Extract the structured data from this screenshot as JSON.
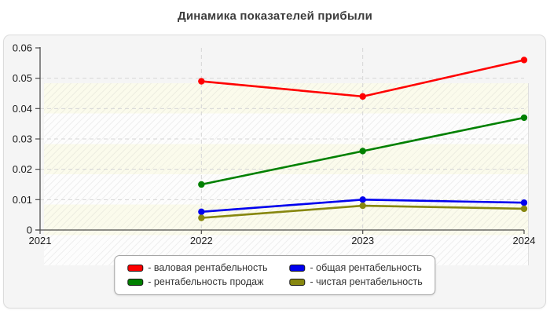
{
  "chart": {
    "title": "Динамика показателей прибыли"
  },
  "chart_data": {
    "type": "line",
    "title": "Динамика показателей прибыли",
    "x_ticks": [
      "2021",
      "2022",
      "2023",
      "2024"
    ],
    "y_ticks": [
      "0",
      "0.01",
      "0.02",
      "0.03",
      "0.04",
      "0.05",
      "0.06"
    ],
    "xlim": [
      2021,
      2024
    ],
    "ylim": [
      0,
      0.06
    ],
    "grid": "dashed",
    "legend_position": "bottom",
    "series": [
      {
        "name": "валовая рентабельность",
        "color": "#ff0000",
        "x": [
          2022,
          2023,
          2024
        ],
        "values": [
          0.049,
          0.044,
          0.056
        ]
      },
      {
        "name": "рентабельность продаж",
        "color": "#008000",
        "x": [
          2022,
          2023,
          2024
        ],
        "values": [
          0.015,
          0.026,
          0.037
        ]
      },
      {
        "name": "общая рентабельность",
        "color": "#0000ee",
        "x": [
          2022,
          2023,
          2024
        ],
        "values": [
          0.006,
          0.01,
          0.009
        ]
      },
      {
        "name": "чистая рентабельность",
        "color": "#87870f",
        "x": [
          2022,
          2023,
          2024
        ],
        "values": [
          0.004,
          0.008,
          0.007
        ]
      }
    ],
    "legend": [
      {
        "label": "- валовая рентабельность",
        "color": "#ff0000"
      },
      {
        "label": "- общая рентабельность",
        "color": "#0000ee"
      },
      {
        "label": "- рентабельность продаж",
        "color": "#008000"
      },
      {
        "label": "- чистая рентабельность",
        "color": "#87870f"
      }
    ],
    "colors": {
      "axis": "#4d4d4d",
      "gridline": "#d6d6d6",
      "panel_bg": "#f5f5f5",
      "plot_band": "#fbfbec"
    }
  }
}
